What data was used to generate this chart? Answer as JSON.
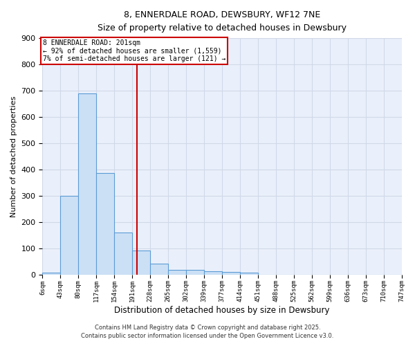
{
  "title": "8, ENNERDALE ROAD, DEWSBURY, WF12 7NE",
  "subtitle": "Size of property relative to detached houses in Dewsbury",
  "xlabel": "Distribution of detached houses by size in Dewsbury",
  "ylabel": "Number of detached properties",
  "bin_labels": [
    "6sqm",
    "43sqm",
    "80sqm",
    "117sqm",
    "154sqm",
    "191sqm",
    "228sqm",
    "265sqm",
    "302sqm",
    "339sqm",
    "377sqm",
    "414sqm",
    "451sqm",
    "488sqm",
    "525sqm",
    "562sqm",
    "599sqm",
    "636sqm",
    "673sqm",
    "710sqm",
    "747sqm"
  ],
  "bin_edges": [
    6,
    43,
    80,
    117,
    154,
    191,
    228,
    265,
    302,
    339,
    377,
    414,
    451,
    488,
    525,
    562,
    599,
    636,
    673,
    710,
    747
  ],
  "bar_heights": [
    8,
    300,
    690,
    385,
    160,
    90,
    42,
    18,
    18,
    12,
    10,
    7,
    0,
    0,
    0,
    0,
    0,
    0,
    0,
    0
  ],
  "bar_color": "#cce0f5",
  "bar_edge_color": "#5b9bd5",
  "grid_color": "#d0d8e8",
  "bg_color": "#eaf0fb",
  "property_value": 201,
  "vline_color": "#cc0000",
  "annotation_line1": "8 ENNERDALE ROAD: 201sqm",
  "annotation_line2": "← 92% of detached houses are smaller (1,559)",
  "annotation_line3": "7% of semi-detached houses are larger (121) →",
  "annotation_box_color": "#cc0000",
  "ylim": [
    0,
    900
  ],
  "yticks": [
    0,
    100,
    200,
    300,
    400,
    500,
    600,
    700,
    800,
    900
  ],
  "footer1": "Contains HM Land Registry data © Crown copyright and database right 2025.",
  "footer2": "Contains public sector information licensed under the Open Government Licence v3.0."
}
